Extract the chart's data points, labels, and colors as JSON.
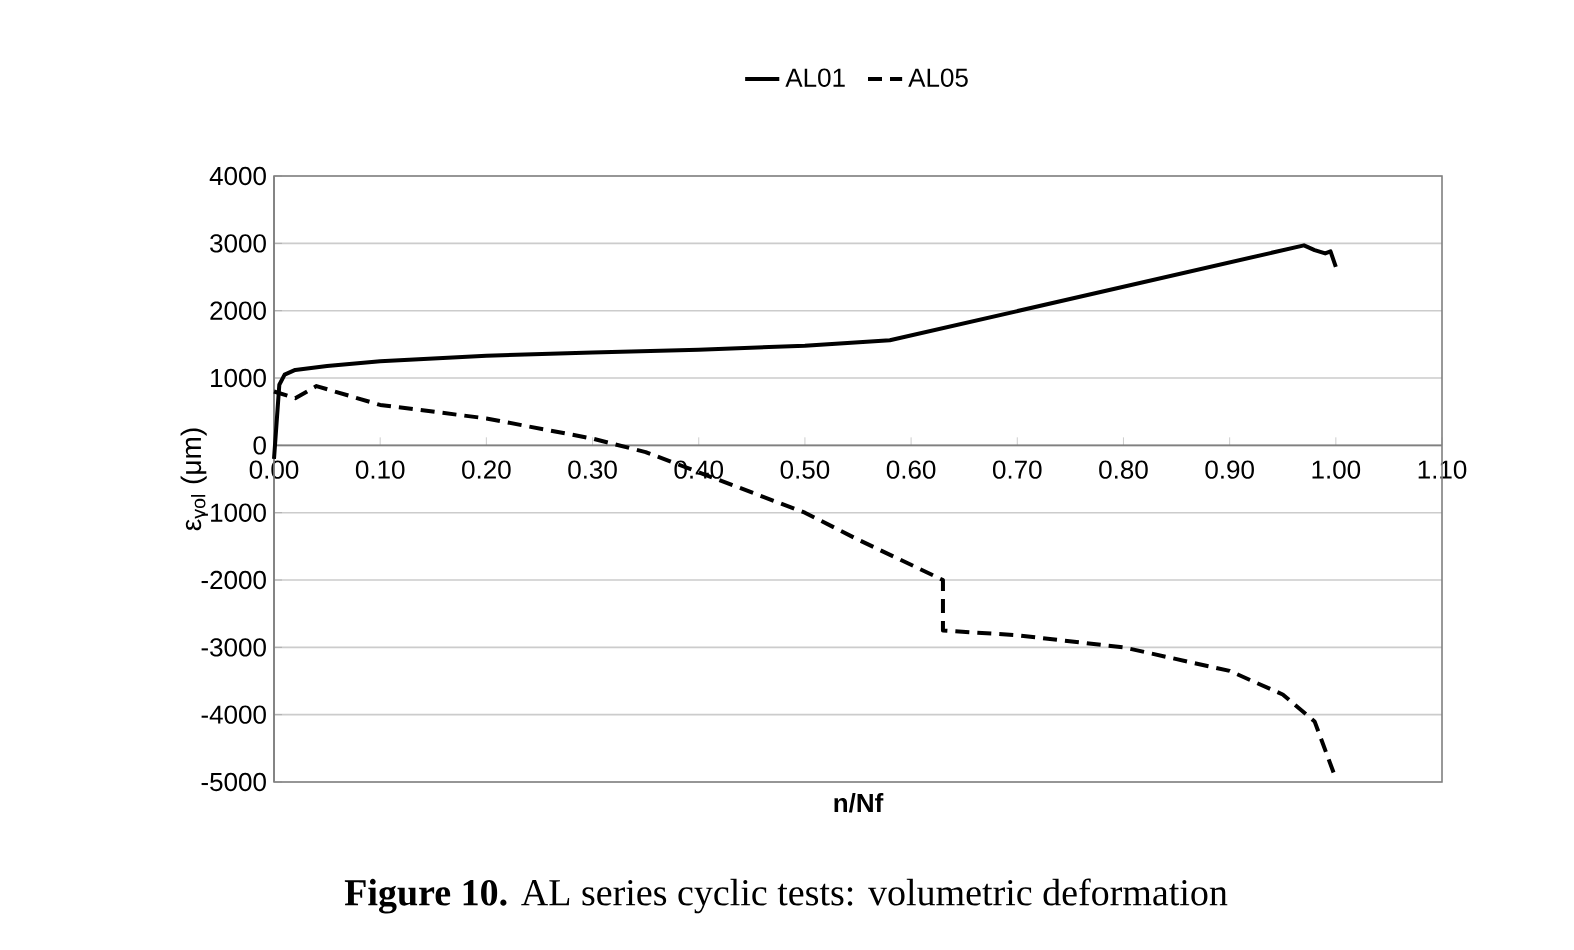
{
  "chart_data": {
    "type": "line",
    "xlabel": "n/Nf",
    "ylabel": "ε$_{vol}$ (μm)",
    "annotations": [
      "**Figure 10.** AL series cyclic tests: volumetric deformation"
    ],
    "xlim": [
      0,
      1.1
    ],
    "ylim": [
      -5000,
      4000
    ],
    "xticks": [
      {
        "value": 0,
        "label": "0.00"
      },
      {
        "value": 0.1,
        "label": "0.10"
      },
      {
        "value": 0.2,
        "label": "0.20"
      },
      {
        "value": 0.3,
        "label": "0.30"
      },
      {
        "value": 0.4,
        "label": "0.40"
      },
      {
        "value": 0.5,
        "label": "0.50"
      },
      {
        "value": 0.6,
        "label": "0.60"
      },
      {
        "value": 0.7,
        "label": "0.70"
      },
      {
        "value": 0.8,
        "label": "0.80"
      },
      {
        "value": 0.9,
        "label": "0.90"
      },
      {
        "value": 1.0,
        "label": "1.00"
      },
      {
        "value": 1.1,
        "label": "1.10"
      }
    ],
    "yticks": [
      -5000,
      -4000,
      -3000,
      -2000,
      -1000,
      0,
      1000,
      2000,
      3000,
      4000
    ],
    "grid": "y",
    "legend": "top",
    "series": [
      {
        "name": "AL01",
        "color": "#000000",
        "line_style": "solid",
        "x": [
          0.0,
          0.005,
          0.01,
          0.02,
          0.05,
          0.1,
          0.2,
          0.3,
          0.4,
          0.5,
          0.58,
          0.97,
          0.98,
          0.99,
          0.995,
          1.0
        ],
        "values": [
          -200,
          900,
          1050,
          1120,
          1180,
          1250,
          1330,
          1380,
          1420,
          1480,
          1560,
          2970,
          2900,
          2850,
          2880,
          2650
        ]
      },
      {
        "name": "AL05",
        "color": "#000000",
        "line_style": "dashed",
        "x": [
          0.0,
          0.02,
          0.04,
          0.1,
          0.2,
          0.3,
          0.35,
          0.4,
          0.45,
          0.5,
          0.55,
          0.63,
          0.63,
          0.7,
          0.8,
          0.9,
          0.95,
          0.98,
          1.0
        ],
        "values": [
          800,
          700,
          880,
          600,
          400,
          100,
          -100,
          -400,
          -700,
          -1000,
          -1400,
          -2000,
          -2750,
          -2820,
          -3000,
          -3350,
          -3700,
          -4100,
          -4950
        ]
      }
    ]
  }
}
